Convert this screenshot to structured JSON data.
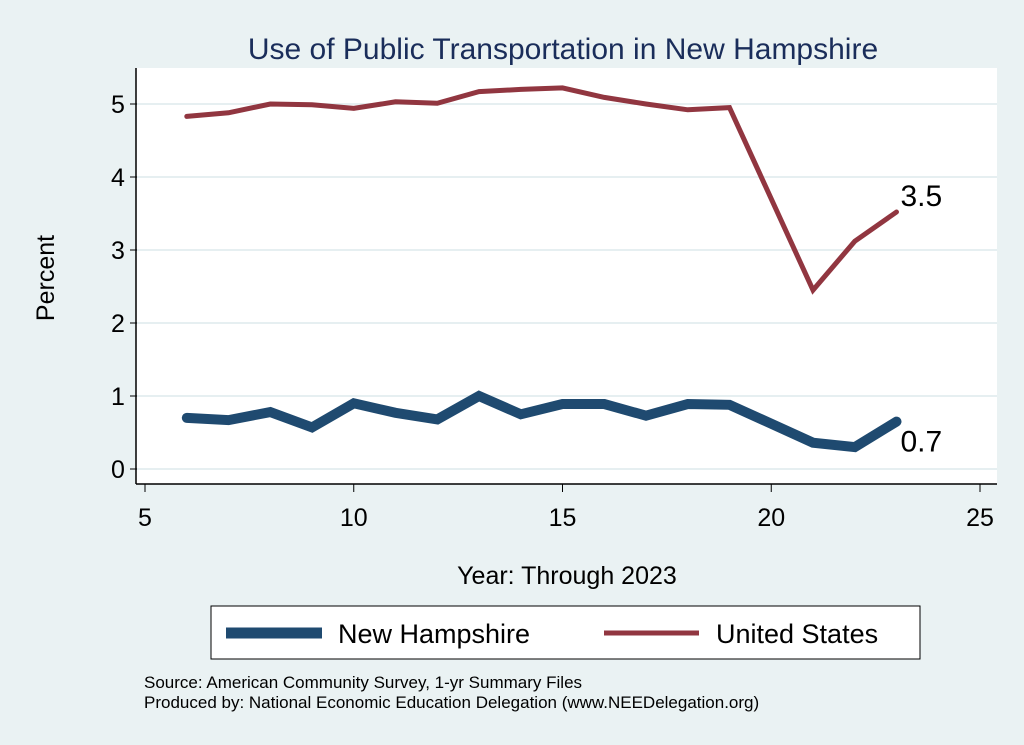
{
  "chart_data": {
    "type": "line",
    "title": "Use of Public Transportation in New Hampshire",
    "xlabel": "Year: Through 2023",
    "ylabel": "Percent",
    "xlim": [
      5,
      25
    ],
    "ylim": [
      0,
      5.4
    ],
    "xticks": [
      5,
      10,
      15,
      20,
      25
    ],
    "yticks": [
      0,
      1,
      2,
      3,
      4,
      5
    ],
    "grid": "horizontal",
    "legend_position": "bottom",
    "series": [
      {
        "name": "New Hampshire",
        "color": "#1f4a70",
        "x": [
          6,
          7,
          8,
          9,
          10,
          11,
          12,
          13,
          14,
          15,
          16,
          17,
          18,
          19,
          21,
          22,
          23
        ],
        "values": [
          0.7,
          0.67,
          0.78,
          0.57,
          0.9,
          0.77,
          0.68,
          1.0,
          0.75,
          0.89,
          0.89,
          0.73,
          0.89,
          0.88,
          0.36,
          0.3,
          0.65
        ],
        "end_label": "0.7"
      },
      {
        "name": "United States",
        "color": "#913640",
        "x": [
          6,
          7,
          8,
          9,
          10,
          11,
          12,
          13,
          14,
          15,
          16,
          17,
          18,
          19,
          21,
          22,
          23
        ],
        "values": [
          4.83,
          4.88,
          5.0,
          4.99,
          4.94,
          5.03,
          5.01,
          5.17,
          5.2,
          5.22,
          5.09,
          5.0,
          4.92,
          4.95,
          2.45,
          3.12,
          3.52
        ],
        "end_label": "3.5"
      }
    ],
    "notes": [
      "Source: American Community Survey, 1-yr Summary Files",
      "Produced by: National Economic Education Delegation (www.NEEDelegation.org)"
    ]
  }
}
